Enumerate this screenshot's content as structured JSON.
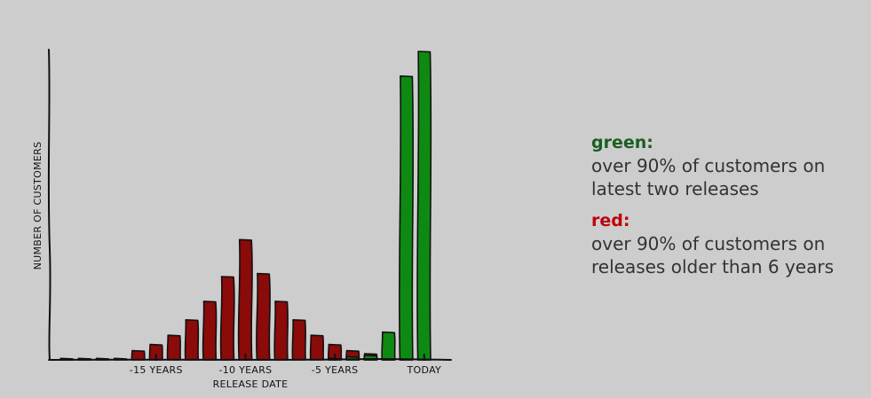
{
  "chart_data": {
    "type": "bar",
    "xlabel": "RELEASE DATE",
    "ylabel": "NUMBER OF CUSTOMERS",
    "x_ticks": [
      {
        "label": "-15 YEARS",
        "x": -15
      },
      {
        "label": "-10 YEARS",
        "x": -10
      },
      {
        "label": "-5 YEARS",
        "x": -5
      },
      {
        "label": "TODAY",
        "x": 0
      }
    ],
    "series": [
      {
        "name": "red",
        "color": "#8b0a0a",
        "points": [
          {
            "x": -20,
            "y": 0.5
          },
          {
            "x": -19,
            "y": 0.5
          },
          {
            "x": -18,
            "y": 0.5
          },
          {
            "x": -17,
            "y": 0.5
          },
          {
            "x": -16,
            "y": 3
          },
          {
            "x": -15,
            "y": 5
          },
          {
            "x": -14,
            "y": 8
          },
          {
            "x": -13,
            "y": 13
          },
          {
            "x": -12,
            "y": 19
          },
          {
            "x": -11,
            "y": 27
          },
          {
            "x": -10,
            "y": 39
          },
          {
            "x": -9,
            "y": 28
          },
          {
            "x": -8,
            "y": 19
          },
          {
            "x": -7,
            "y": 13
          },
          {
            "x": -6,
            "y": 8
          },
          {
            "x": -5,
            "y": 5
          },
          {
            "x": -4,
            "y": 3
          },
          {
            "x": -3,
            "y": 2
          },
          {
            "x": -2,
            "y": 1
          },
          {
            "x": -1,
            "y": 0.5
          },
          {
            "x": 0,
            "y": 0.3
          }
        ]
      },
      {
        "name": "green",
        "color": "#0e8a12",
        "points": [
          {
            "x": -5,
            "y": 0.5
          },
          {
            "x": -4,
            "y": 1
          },
          {
            "x": -3,
            "y": 1.5
          },
          {
            "x": -2,
            "y": 9
          },
          {
            "x": -1,
            "y": 92
          },
          {
            "x": 0,
            "y": 100
          }
        ]
      }
    ],
    "xlim": [
      -21,
      1.5
    ],
    "ylim": [
      0,
      100
    ]
  },
  "legend": {
    "green_key": "green:",
    "green_desc_1": "over 90% of customers on",
    "green_desc_2": "latest two releases",
    "red_key": "red:",
    "red_desc_1": "over 90% of customers on",
    "red_desc_2": "releases older than 6 years",
    "green_color": "#1b5e20",
    "red_color": "#c0000a"
  }
}
